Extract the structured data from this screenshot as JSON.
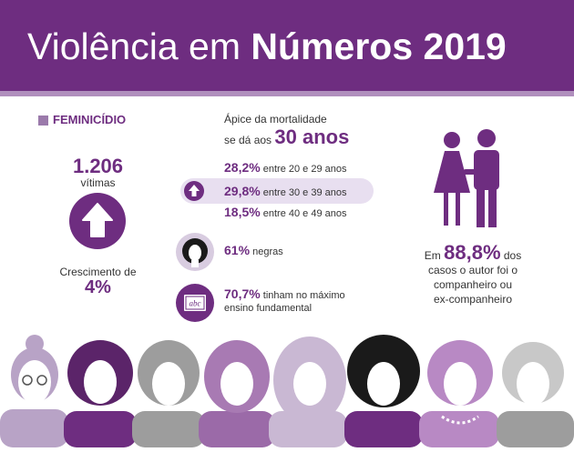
{
  "header": {
    "title_light": "Violência em",
    "title_bold": "Números 2019",
    "bg_color": "#6e2d80",
    "stripe_color": "#b08fbd"
  },
  "femicide": {
    "label": "FEMINICÍDIO",
    "victims_count": "1.206",
    "victims_label": "vítimas",
    "growth_label": "Crescimento de",
    "growth_value": "4%",
    "icon": "arrow-up-icon"
  },
  "mortality": {
    "line1": "Ápice da mortalidade",
    "line2_prefix": "se dá aos",
    "peak_age": "30 anos",
    "age_groups": [
      {
        "pct": "28,2%",
        "label": "entre 20 e 29 anos",
        "highlighted": false
      },
      {
        "pct": "29,8%",
        "label": "entre 30 e 39 anos",
        "highlighted": true
      },
      {
        "pct": "18,5%",
        "label": "entre 40 e 49 anos",
        "highlighted": false
      }
    ]
  },
  "stats": [
    {
      "pct": "61%",
      "line1": "negras",
      "line2": "",
      "icon": "black-woman-icon"
    },
    {
      "pct": "70,7%",
      "line1": "tinham no máximo",
      "line2": "ensino fundamental",
      "icon": "abc-board-icon",
      "icon_text": "abc"
    }
  ],
  "relationship": {
    "prefix": "Em",
    "pct": "88,8%",
    "suffix": "dos",
    "line2": "casos o autor foi o",
    "line3": "companheiro ou",
    "line4": "ex-companheiro",
    "icon": "couple-icon"
  },
  "colors": {
    "primary": "#6e2d80",
    "light": "#b08fbd",
    "highlight": "#e8dff0",
    "gray": "#9d9d9d"
  }
}
